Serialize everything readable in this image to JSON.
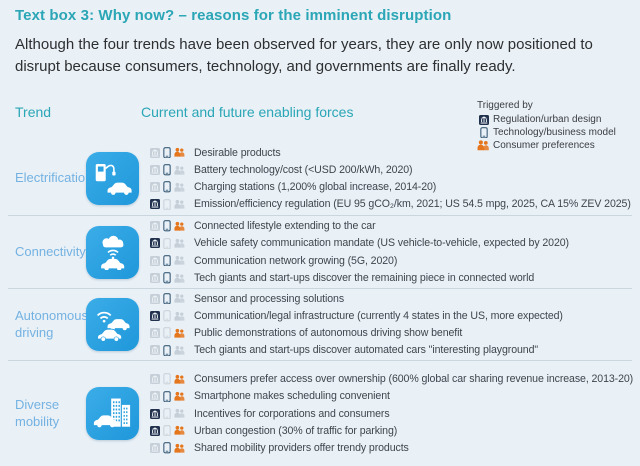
{
  "title": "Text box 3: Why now? – reasons for the imminent disruption",
  "intro": "Although the four trends have been observed for years, they are only now positioned to disrupt because consumers, technology, and governments are finally ready.",
  "columns": {
    "trend": "Trend",
    "forces": "Current and future enabling forces"
  },
  "legend": {
    "title": "Triggered by",
    "items": [
      {
        "icon": "regulation-icon",
        "label": "Regulation/urban design"
      },
      {
        "icon": "technology-icon",
        "label": "Technology/business model"
      },
      {
        "icon": "consumer-icon",
        "label": "Consumer preferences"
      }
    ]
  },
  "colors": {
    "accent_teal": "#2aa6b6",
    "trend_label_blue": "#74b2e2",
    "tile_blue": "#2aa0e0",
    "regulation_navy": "#20304d",
    "technology_blue": "#3a5d79",
    "consumer_orange": "#e5761c",
    "inactive_grey": "#c6cfd8"
  },
  "trends": [
    {
      "name": "Electrification",
      "icon": "ev-charging-station-icon",
      "items": [
        {
          "text": "Desirable products",
          "triggers": {
            "regulation": false,
            "technology": true,
            "consumer": true
          }
        },
        {
          "text": "Battery technology/cost (<USD 200/kWh, 2020)",
          "triggers": {
            "regulation": false,
            "technology": true,
            "consumer": false
          }
        },
        {
          "text": "Charging stations (1,200% global increase, 2014-20)",
          "triggers": {
            "regulation": false,
            "technology": true,
            "consumer": false
          }
        },
        {
          "text": "Emission/efficiency regulation (EU 95 gCO₂/km, 2021; US 54.5 mpg, 2025, CA 15% ZEV 2025)",
          "triggers": {
            "regulation": true,
            "technology": false,
            "consumer": false
          }
        }
      ]
    },
    {
      "name": "Connectivity",
      "icon": "connected-car-cloud-icon",
      "items": [
        {
          "text": "Connected lifestyle extending to the car",
          "triggers": {
            "regulation": false,
            "technology": true,
            "consumer": true
          }
        },
        {
          "text": "Vehicle safety communication mandate (US vehicle-to-vehicle, expected by 2020)",
          "triggers": {
            "regulation": true,
            "technology": false,
            "consumer": false
          }
        },
        {
          "text": "Communication network growing (5G, 2020)",
          "triggers": {
            "regulation": false,
            "technology": true,
            "consumer": false
          }
        },
        {
          "text": "Tech giants and start-ups discover the remaining piece in connected world",
          "triggers": {
            "regulation": false,
            "technology": true,
            "consumer": false
          }
        }
      ]
    },
    {
      "name": "Autonomous driving",
      "icon": "autonomous-cars-wifi-icon",
      "items": [
        {
          "text": "Sensor and processing solutions",
          "triggers": {
            "regulation": false,
            "technology": true,
            "consumer": false
          }
        },
        {
          "text": "Communication/legal infrastructure (currently 4 states in the US, more expected)",
          "triggers": {
            "regulation": true,
            "technology": false,
            "consumer": false
          }
        },
        {
          "text": "Public demonstrations of autonomous driving show benefit",
          "triggers": {
            "regulation": false,
            "technology": false,
            "consumer": true
          }
        },
        {
          "text": "Tech giants and start-ups discover automated cars \"interesting playground\"",
          "triggers": {
            "regulation": false,
            "technology": true,
            "consumer": false
          }
        }
      ]
    },
    {
      "name": "Diverse mobility",
      "icon": "city-buildings-car-icon",
      "items": [
        {
          "text": "Consumers prefer access over ownership (600% global car sharing revenue increase, 2013-20)",
          "triggers": {
            "regulation": false,
            "technology": false,
            "consumer": true
          }
        },
        {
          "text": "Smartphone makes scheduling convenient",
          "triggers": {
            "regulation": false,
            "technology": true,
            "consumer": true
          }
        },
        {
          "text": "Incentives for corporations and consumers",
          "triggers": {
            "regulation": true,
            "technology": false,
            "consumer": false
          }
        },
        {
          "text": "Urban congestion (30% of traffic for parking)",
          "triggers": {
            "regulation": true,
            "technology": false,
            "consumer": true
          }
        },
        {
          "text": "Shared mobility providers offer trendy products",
          "triggers": {
            "regulation": false,
            "technology": true,
            "consumer": true
          }
        }
      ]
    }
  ]
}
